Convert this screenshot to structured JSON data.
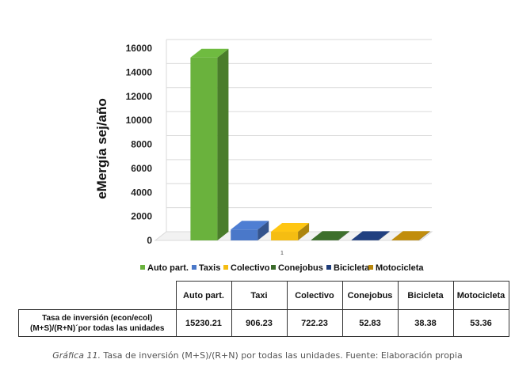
{
  "chart_data": {
    "type": "bar",
    "categories": [
      "Auto part.",
      "Taxis",
      "Colectivo",
      "Conejobus",
      "Bicicleta",
      "Motocicleta"
    ],
    "values": [
      15230.21,
      906.23,
      722.23,
      52.83,
      38.38,
      53.36
    ],
    "colors": [
      "#6ab23d",
      "#4a78c9",
      "#f5bd12",
      "#3a6a2a",
      "#1f3d7a",
      "#b8860b"
    ],
    "title": "",
    "xlabel": "",
    "ylabel": "eMergía sej/año",
    "ylim": [
      0,
      16000
    ],
    "yticks": [
      "0",
      "2000",
      "4000",
      "6000",
      "8000",
      "10000",
      "12000",
      "14000",
      "16000"
    ],
    "x_axis_label": "1",
    "legend_position": "bottom",
    "grid": true
  },
  "table": {
    "headers": [
      "Auto part.",
      "Taxi",
      "Colectivo",
      "Conejobus",
      "Bicicleta",
      "Motocicleta"
    ],
    "row_label_line1": "Tasa de inversión (econ/ecol)",
    "row_label_line2": "(M+S)/(R+N)´por todas las unidades",
    "values": [
      "15230.21",
      "906.23",
      "722.23",
      "52.83",
      "38.38",
      "53.36"
    ]
  },
  "caption": {
    "label": "Gráfica 11.",
    "text": " Tasa de inversión (M+S)/(R+N) por todas las unidades. Fuente: Elaboración propia"
  }
}
